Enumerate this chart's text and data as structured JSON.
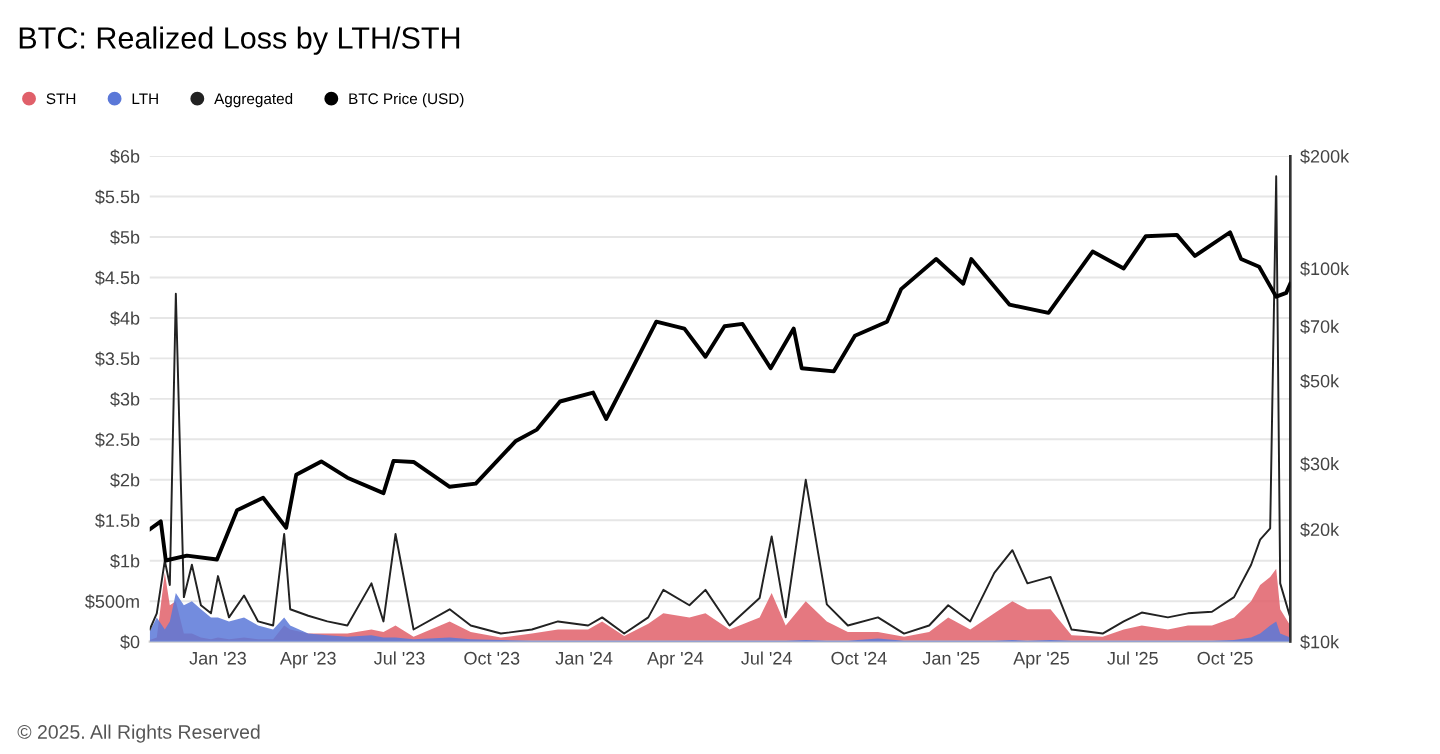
{
  "chart_data": {
    "type": "area",
    "title": "BTC: Realized Loss by LTH/STH",
    "x": [
      "2022-10-25",
      "2022-11-01",
      "2022-11-09",
      "2022-11-14",
      "2022-11-20",
      "2022-11-28",
      "2022-12-06",
      "2022-12-15",
      "2022-12-25",
      "2023-01-01",
      "2023-01-12",
      "2023-01-27",
      "2023-02-10",
      "2023-02-25",
      "2023-03-08",
      "2023-03-14",
      "2023-04-01",
      "2023-04-20",
      "2023-05-10",
      "2023-06-03",
      "2023-06-15",
      "2023-06-27",
      "2023-07-15",
      "2023-08-20",
      "2023-09-10",
      "2023-10-10",
      "2023-11-10",
      "2023-12-06",
      "2024-01-05",
      "2024-01-19",
      "2024-02-10",
      "2024-03-05",
      "2024-03-20",
      "2024-04-15",
      "2024-05-01",
      "2024-05-25",
      "2024-06-24",
      "2024-07-06",
      "2024-07-20",
      "2024-08-09",
      "2024-08-30",
      "2024-09-20",
      "2024-10-20",
      "2024-11-15",
      "2024-12-10",
      "2024-12-29",
      "2025-01-20",
      "2025-02-13",
      "2025-03-03",
      "2025-03-18",
      "2025-04-10",
      "2025-05-01",
      "2025-06-01",
      "2025-06-22",
      "2025-07-10",
      "2025-08-05",
      "2025-08-25",
      "2025-09-18",
      "2025-10-10",
      "2025-10-27",
      "2025-11-05",
      "2025-11-15",
      "2025-11-21",
      "2025-11-25",
      "2025-12-05"
    ],
    "series": [
      {
        "name": "STH",
        "color": "#e0606a",
        "values": [
          20000000,
          50000000,
          850000000,
          450000000,
          500000000,
          100000000,
          100000000,
          50000000,
          30000000,
          50000000,
          30000000,
          50000000,
          30000000,
          30000000,
          200000000,
          150000000,
          100000000,
          100000000,
          100000000,
          150000000,
          120000000,
          200000000,
          60000000,
          250000000,
          120000000,
          50000000,
          100000000,
          150000000,
          150000000,
          250000000,
          70000000,
          220000000,
          350000000,
          300000000,
          350000000,
          150000000,
          300000000,
          600000000,
          200000000,
          500000000,
          250000000,
          120000000,
          120000000,
          60000000,
          120000000,
          300000000,
          150000000,
          350000000,
          500000000,
          400000000,
          400000000,
          80000000,
          60000000,
          150000000,
          200000000,
          150000000,
          200000000,
          200000000,
          300000000,
          500000000,
          700000000,
          800000000,
          900000000,
          400000000,
          200000000
        ]
      },
      {
        "name": "LTH",
        "color": "#5b78d8",
        "values": [
          130000000,
          300000000,
          150000000,
          250000000,
          600000000,
          450000000,
          500000000,
          400000000,
          300000000,
          300000000,
          250000000,
          300000000,
          200000000,
          150000000,
          300000000,
          200000000,
          100000000,
          80000000,
          60000000,
          80000000,
          50000000,
          50000000,
          30000000,
          50000000,
          30000000,
          20000000,
          10000000,
          10000000,
          10000000,
          10000000,
          10000000,
          10000000,
          10000000,
          10000000,
          10000000,
          10000000,
          10000000,
          10000000,
          10000000,
          20000000,
          10000000,
          10000000,
          40000000,
          10000000,
          10000000,
          10000000,
          10000000,
          10000000,
          20000000,
          10000000,
          20000000,
          10000000,
          10000000,
          10000000,
          10000000,
          10000000,
          10000000,
          10000000,
          20000000,
          50000000,
          100000000,
          200000000,
          250000000,
          100000000,
          50000000
        ]
      },
      {
        "name": "Aggregated",
        "type": "line",
        "color": "#222222",
        "values": [
          150000000,
          350000000,
          1000000000,
          700000000,
          4300000000,
          550000000,
          950000000,
          450000000,
          350000000,
          810000000,
          300000000,
          570000000,
          250000000,
          200000000,
          1330000000,
          400000000,
          320000000,
          250000000,
          200000000,
          720000000,
          250000000,
          1330000000,
          150000000,
          400000000,
          200000000,
          100000000,
          150000000,
          250000000,
          200000000,
          300000000,
          100000000,
          300000000,
          640000000,
          450000000,
          640000000,
          200000000,
          540000000,
          1300000000,
          300000000,
          2000000000,
          460000000,
          200000000,
          300000000,
          100000000,
          200000000,
          450000000,
          250000000,
          850000000,
          1130000000,
          720000000,
          800000000,
          150000000,
          100000000,
          250000000,
          360000000,
          300000000,
          350000000,
          370000000,
          550000000,
          950000000,
          1260000000,
          1400000000,
          5750000000,
          720000000,
          300000000
        ]
      },
      {
        "name": "BTC Price (USD)",
        "type": "line",
        "axis": "y2",
        "color": "#000000",
        "x": [
          "2022-10-25",
          "2022-11-05",
          "2022-11-10",
          "2022-12-01",
          "2022-12-31",
          "2023-01-20",
          "2023-02-15",
          "2023-03-10",
          "2023-03-20",
          "2023-04-14",
          "2023-05-10",
          "2023-06-15",
          "2023-06-25",
          "2023-07-15",
          "2023-08-20",
          "2023-09-15",
          "2023-10-25",
          "2023-11-15",
          "2023-12-08",
          "2024-01-10",
          "2024-01-23",
          "2024-02-15",
          "2024-03-13",
          "2024-04-10",
          "2024-05-01",
          "2024-05-20",
          "2024-06-07",
          "2024-07-05",
          "2024-07-28",
          "2024-08-05",
          "2024-09-06",
          "2024-09-27",
          "2024-10-29",
          "2024-11-12",
          "2024-12-17",
          "2025-01-13",
          "2025-01-21",
          "2025-02-28",
          "2025-04-08",
          "2025-05-22",
          "2025-06-22",
          "2025-07-14",
          "2025-08-14",
          "2025-09-01",
          "2025-10-06",
          "2025-10-17",
          "2025-11-04",
          "2025-11-21",
          "2025-12-01",
          "2025-12-05"
        ],
        "values": [
          20000,
          21000,
          16500,
          17000,
          16600,
          22500,
          24300,
          20200,
          28000,
          30400,
          27500,
          25000,
          30500,
          30300,
          26000,
          26500,
          34500,
          37000,
          44000,
          46500,
          39500,
          52000,
          72000,
          69000,
          58000,
          70000,
          71000,
          54000,
          69000,
          54000,
          53000,
          66000,
          72000,
          88000,
          106000,
          91000,
          106000,
          80000,
          76000,
          111000,
          100000,
          122000,
          123000,
          108000,
          125000,
          106000,
          101000,
          84000,
          86000,
          91000
        ]
      }
    ],
    "xlim": [
      "2022-10-25",
      "2025-12-05"
    ],
    "xticks": [
      {
        "value": "2023-01-01",
        "label": "Jan '23"
      },
      {
        "value": "2023-04-01",
        "label": "Apr '23"
      },
      {
        "value": "2023-07-01",
        "label": "Jul '23"
      },
      {
        "value": "2023-10-01",
        "label": "Oct '23"
      },
      {
        "value": "2024-01-01",
        "label": "Jan '24"
      },
      {
        "value": "2024-04-01",
        "label": "Apr '24"
      },
      {
        "value": "2024-07-01",
        "label": "Jul '24"
      },
      {
        "value": "2024-10-01",
        "label": "Oct '24"
      },
      {
        "value": "2025-01-01",
        "label": "Jan '25"
      },
      {
        "value": "2025-04-01",
        "label": "Apr '25"
      },
      {
        "value": "2025-07-01",
        "label": "Jul '25"
      },
      {
        "value": "2025-10-01",
        "label": "Oct '25"
      }
    ],
    "ylim": [
      0,
      6000000000
    ],
    "yticks": [
      {
        "value": 0,
        "label": "$0"
      },
      {
        "value": 500000000,
        "label": "$500m"
      },
      {
        "value": 1000000000,
        "label": "$1b"
      },
      {
        "value": 1500000000,
        "label": "$1.5b"
      },
      {
        "value": 2000000000,
        "label": "$2b"
      },
      {
        "value": 2500000000,
        "label": "$2.5b"
      },
      {
        "value": 3000000000,
        "label": "$3b"
      },
      {
        "value": 3500000000,
        "label": "$3.5b"
      },
      {
        "value": 4000000000,
        "label": "$4b"
      },
      {
        "value": 4500000000,
        "label": "$4.5b"
      },
      {
        "value": 5000000000,
        "label": "$5b"
      },
      {
        "value": 5500000000,
        "label": "$5.5b"
      },
      {
        "value": 6000000000,
        "label": "$6b"
      }
    ],
    "y2lim": [
      10000,
      200000
    ],
    "y2ticks": [
      {
        "value": 10000,
        "label": "$10k"
      },
      {
        "value": 20000,
        "label": "$20k"
      },
      {
        "value": 30000,
        "label": "$30k"
      },
      {
        "value": 50000,
        "label": "$50k"
      },
      {
        "value": 70000,
        "label": "$70k"
      },
      {
        "value": 100000,
        "label": "$100k"
      },
      {
        "value": 200000,
        "label": "$200k"
      }
    ],
    "log": "y2",
    "grid": "y",
    "legend": "top left",
    "marker": "none",
    "annotations": [
      "© 2025. All Rights Reserved"
    ]
  }
}
